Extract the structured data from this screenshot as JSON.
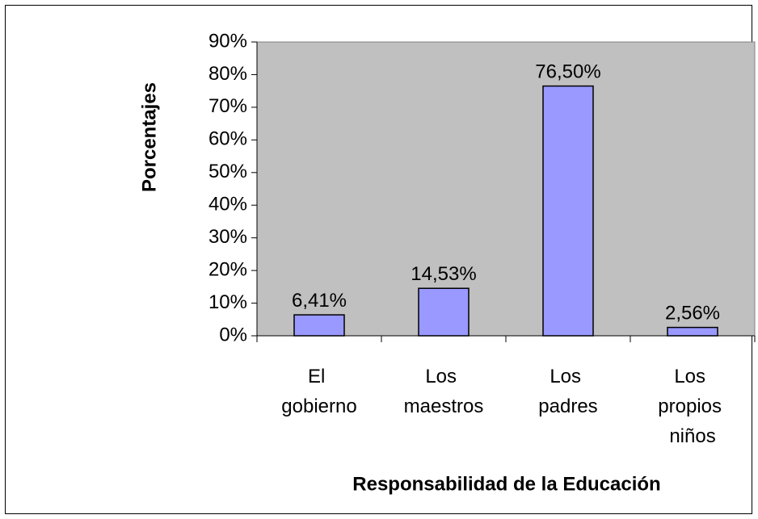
{
  "chart_data": {
    "type": "bar",
    "x_label": "Responsabilidad de la Educación",
    "y_label": "Porcentajes",
    "categories": [
      "El gobierno",
      "Los maestros",
      "Los padres",
      "Los propios niños"
    ],
    "values": [
      6.41,
      14.53,
      76.5,
      2.56
    ],
    "value_labels": [
      "6,41%",
      "14,53%",
      "76,50%",
      "2,56%"
    ],
    "color": "#9999ff",
    "ylim": [
      0,
      90
    ],
    "yticks": [
      {
        "value": 0,
        "label": "0%"
      },
      {
        "value": 10,
        "label": "10%"
      },
      {
        "value": 20,
        "label": "20%"
      },
      {
        "value": 30,
        "label": "30%"
      },
      {
        "value": 40,
        "label": "40%"
      },
      {
        "value": 50,
        "label": "50%"
      },
      {
        "value": 60,
        "label": "60%"
      },
      {
        "value": 70,
        "label": "70%"
      },
      {
        "value": 80,
        "label": "80%"
      },
      {
        "value": 90,
        "label": "90%"
      }
    ],
    "grid": false
  }
}
